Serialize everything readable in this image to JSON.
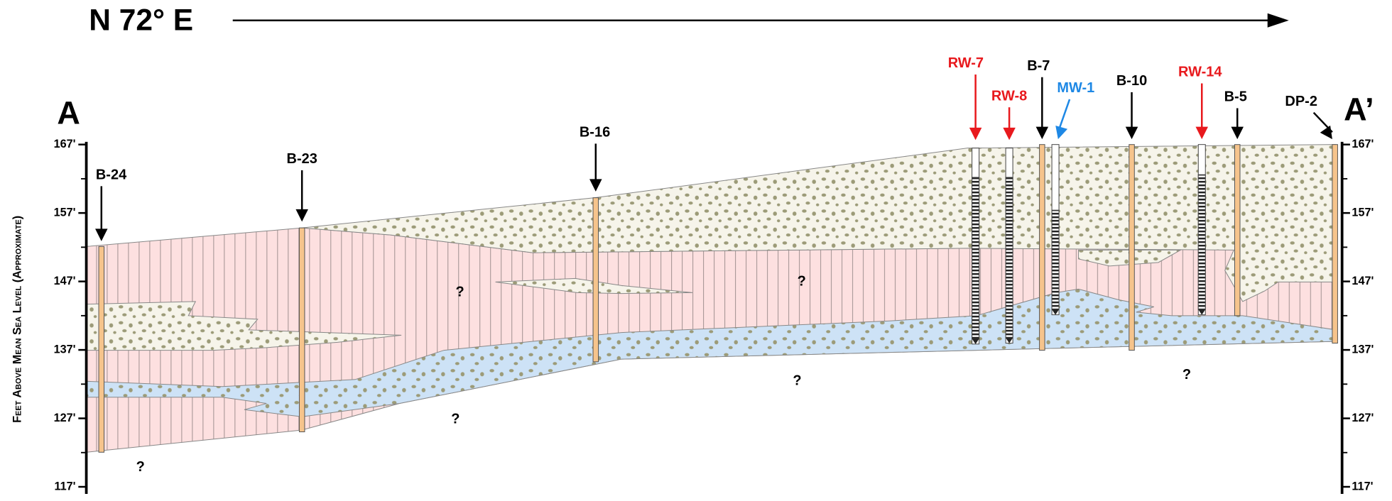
{
  "header": {
    "bearing": "N 72° E"
  },
  "section": {
    "start": "A",
    "end": "A’"
  },
  "axis": {
    "label": "Feet Above Mean Sea Level (Approximate)",
    "ticks": [
      {
        "value": 167,
        "label": "167'"
      },
      {
        "value": 157,
        "label": "157'"
      },
      {
        "value": 147,
        "label": "147'"
      },
      {
        "value": 137,
        "label": "137'"
      },
      {
        "value": 127,
        "label": "127'"
      },
      {
        "value": 117,
        "label": "117'"
      }
    ]
  },
  "wells": [
    {
      "label": "B-24",
      "color": "#000000"
    },
    {
      "label": "B-23",
      "color": "#000000"
    },
    {
      "label": "B-16",
      "color": "#000000"
    },
    {
      "label": "RW-7",
      "color": "#e8191d"
    },
    {
      "label": "RW-8",
      "color": "#e8191d"
    },
    {
      "label": "B-7",
      "color": "#000000"
    },
    {
      "label": "MW-1",
      "color": "#1e88e5"
    },
    {
      "label": "B-10",
      "color": "#000000"
    },
    {
      "label": "RW-14",
      "color": "#e8191d"
    },
    {
      "label": "B-5",
      "color": "#000000"
    },
    {
      "label": "DP-2",
      "color": "#000000"
    }
  ],
  "unknowns": [
    "?",
    "?",
    "?",
    "?",
    "?",
    "?"
  ]
}
